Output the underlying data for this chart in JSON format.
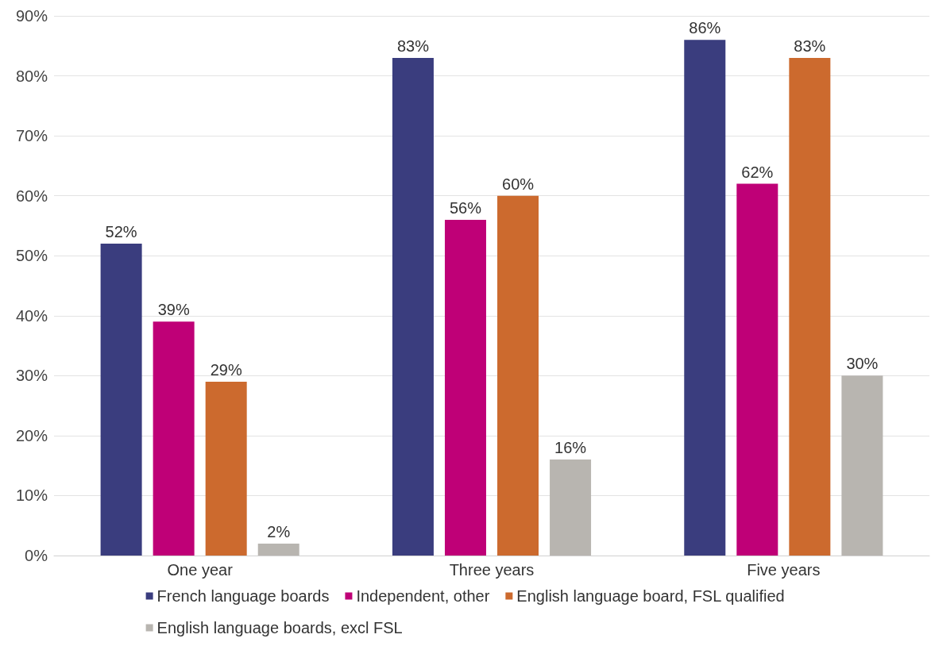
{
  "chart_data": {
    "type": "bar",
    "categories": [
      "One year",
      "Three years",
      "Five years"
    ],
    "series": [
      {
        "name": "French language boards",
        "color": "#3a3d7e",
        "values": [
          52,
          83,
          86
        ],
        "value_labels": [
          "52%",
          "83%",
          "86%"
        ]
      },
      {
        "name": "Independent, other",
        "color": "#bf0077",
        "values": [
          39,
          56,
          62
        ],
        "value_labels": [
          "39%",
          "56%",
          "62%"
        ]
      },
      {
        "name": "English language board, FSL qualified",
        "color": "#cc6a2e",
        "values": [
          29,
          60,
          83
        ],
        "value_labels": [
          "29%",
          "60%",
          "83%"
        ]
      },
      {
        "name": "English language boards, excl FSL",
        "color": "#b8b5b0",
        "values": [
          2,
          16,
          30
        ],
        "value_labels": [
          "2%",
          "16%",
          "30%"
        ]
      }
    ],
    "ylim": [
      0,
      90
    ],
    "yticks": [
      {
        "value": 0,
        "label": "0%"
      },
      {
        "value": 10,
        "label": "10%"
      },
      {
        "value": 20,
        "label": "20%"
      },
      {
        "value": 30,
        "label": "30%"
      },
      {
        "value": 40,
        "label": "40%"
      },
      {
        "value": 50,
        "label": "50%"
      },
      {
        "value": 60,
        "label": "60%"
      },
      {
        "value": 70,
        "label": "70%"
      },
      {
        "value": 80,
        "label": "80%"
      },
      {
        "value": 90,
        "label": "90%"
      }
    ],
    "grid": "y",
    "legend": "bottom"
  }
}
